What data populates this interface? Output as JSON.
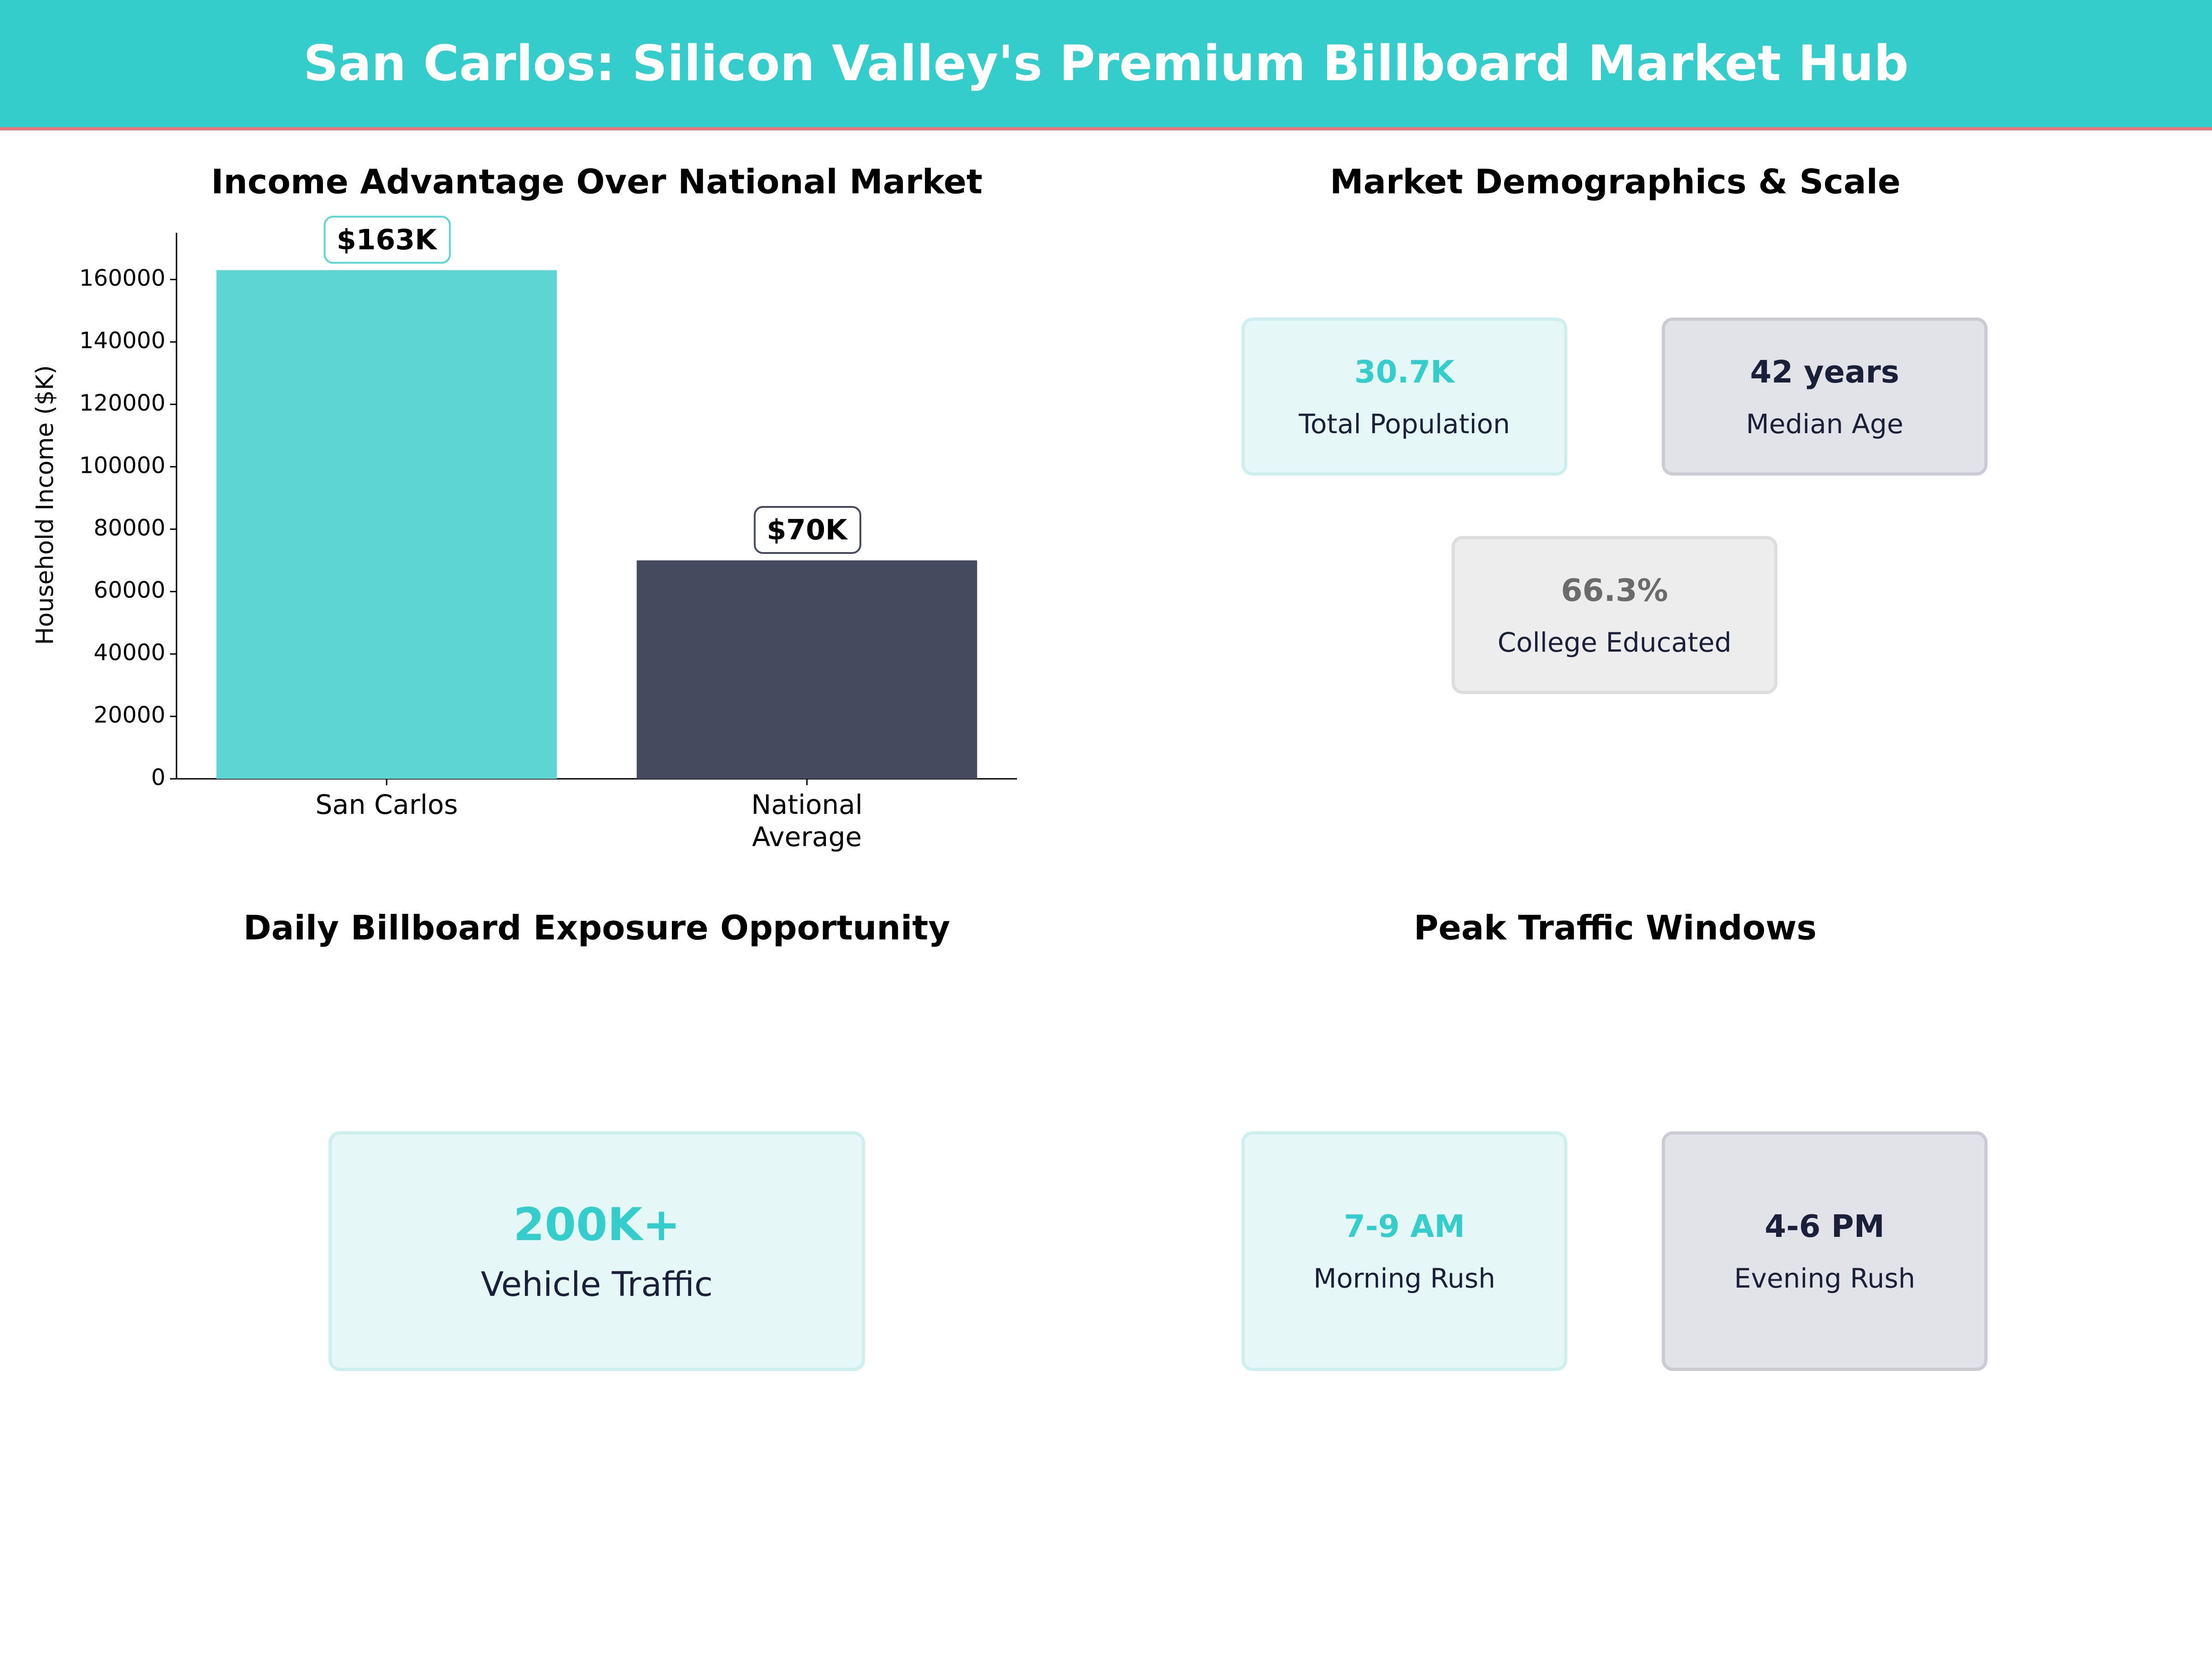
{
  "header": {
    "title": "San Carlos: Silicon Valley's Premium Billboard Market Hub"
  },
  "chart_data": {
    "type": "bar",
    "title": "Income Advantage Over National Market",
    "y_label": "Household Income ($K)",
    "categories": [
      "San Carlos",
      "National\nAverage"
    ],
    "values": [
      163000,
      70000
    ],
    "value_labels": [
      "$163K",
      "$70K"
    ],
    "colors": [
      "#5dd6d3",
      "#464a5f"
    ],
    "ylim": [
      0,
      175000
    ],
    "yticks": [
      0,
      20000,
      40000,
      60000,
      80000,
      100000,
      120000,
      140000,
      160000
    ]
  },
  "demographics": {
    "title": "Market Demographics & Scale",
    "cards": [
      {
        "value": "30.7K",
        "label": "Total Population"
      },
      {
        "value": "42 years",
        "label": "Median Age"
      },
      {
        "value": "66.3%",
        "label": "College Educated"
      }
    ]
  },
  "exposure": {
    "title": "Daily Billboard Exposure Opportunity",
    "cards": [
      {
        "value": "200K+",
        "label": "Vehicle Traffic"
      }
    ]
  },
  "traffic": {
    "title": "Peak Traffic Windows",
    "cards": [
      {
        "value": "7-9 AM",
        "label": "Morning Rush"
      },
      {
        "value": "4-6 PM",
        "label": "Evening Rush"
      }
    ]
  }
}
